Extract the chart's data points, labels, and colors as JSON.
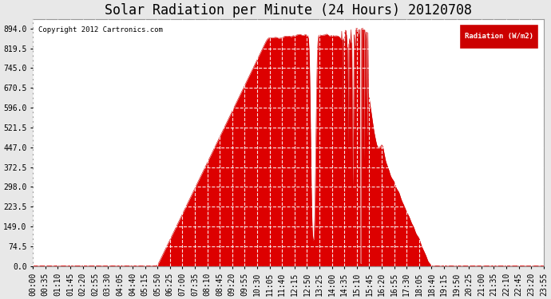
{
  "title": "Solar Radiation per Minute (24 Hours) 20120708",
  "copyright_text": "Copyright 2012 Cartronics.com",
  "legend_label": "Radiation (W/m2)",
  "legend_bg": "#cc0000",
  "legend_text_color": "#ffffff",
  "fill_color": "#dd0000",
  "line_color": "#cc0000",
  "bg_color": "#e8e8e8",
  "plot_bg": "#ffffff",
  "title_fontsize": 12,
  "yticks": [
    0.0,
    74.5,
    149.0,
    223.5,
    298.0,
    372.5,
    447.0,
    521.5,
    596.0,
    670.5,
    745.0,
    819.5,
    894.0
  ],
  "ymax": 930,
  "dashed_line_color": "#dd0000",
  "grid_color": "#aaaaaa",
  "x_tick_labels": [
    "00:00",
    "00:35",
    "01:10",
    "01:45",
    "02:20",
    "02:55",
    "03:30",
    "04:05",
    "04:40",
    "05:15",
    "05:50",
    "06:25",
    "07:00",
    "07:35",
    "08:10",
    "08:45",
    "09:20",
    "09:55",
    "10:30",
    "11:05",
    "11:40",
    "12:15",
    "12:50",
    "13:25",
    "14:00",
    "14:35",
    "15:10",
    "15:45",
    "16:20",
    "16:55",
    "17:30",
    "18:05",
    "18:40",
    "19:15",
    "19:50",
    "20:25",
    "21:00",
    "21:35",
    "22:10",
    "22:45",
    "23:20",
    "23:55"
  ],
  "num_points": 1440
}
